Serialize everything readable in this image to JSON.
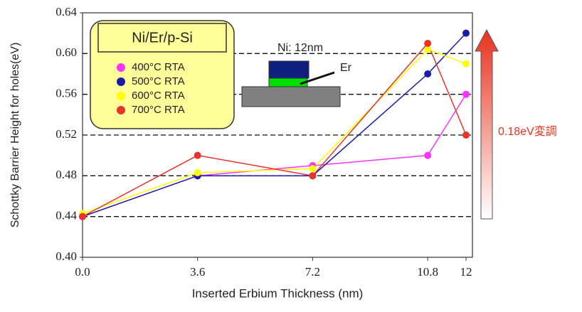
{
  "chart_data": {
    "type": "line",
    "xlabel": "Inserted Erbium Thickness (nm)",
    "ylabel": "Schottky Barrier Height for holes(eV)",
    "x": [
      0,
      3.6,
      7.2,
      10.8,
      12
    ],
    "series": [
      {
        "name": "400°C RTA",
        "color": "#ff33ff",
        "values": [
          0.44,
          0.48,
          0.49,
          0.5,
          0.56
        ]
      },
      {
        "name": "500°C RTA",
        "color": "#1a1aa8",
        "values": [
          0.44,
          0.48,
          0.48,
          0.58,
          0.62
        ]
      },
      {
        "name": "600°C RTA",
        "color": "#ffff00",
        "values": [
          0.443,
          0.483,
          0.487,
          0.604,
          0.59
        ]
      },
      {
        "name": "700°C RTA",
        "color": "#e8322a",
        "values": [
          0.44,
          0.5,
          0.48,
          0.61,
          0.52
        ]
      }
    ],
    "xlim": [
      0,
      12.2
    ],
    "xticks": [
      {
        "value": 0,
        "label": "0.0"
      },
      3.6,
      7.2,
      10.8,
      12
    ],
    "ylim": [
      0.4,
      0.64
    ],
    "yticks": [
      {
        "value": 0.4,
        "label": "0.40"
      },
      0.44,
      0.48,
      0.52,
      0.56,
      {
        "value": 0.6,
        "label": "0.60"
      },
      0.64
    ],
    "grid": true,
    "legend_title": "Ni/Er/p-Si",
    "inset_labels": [
      "Ni: 12nm",
      "Er"
    ],
    "arrow_label": "0.18eV変調"
  }
}
